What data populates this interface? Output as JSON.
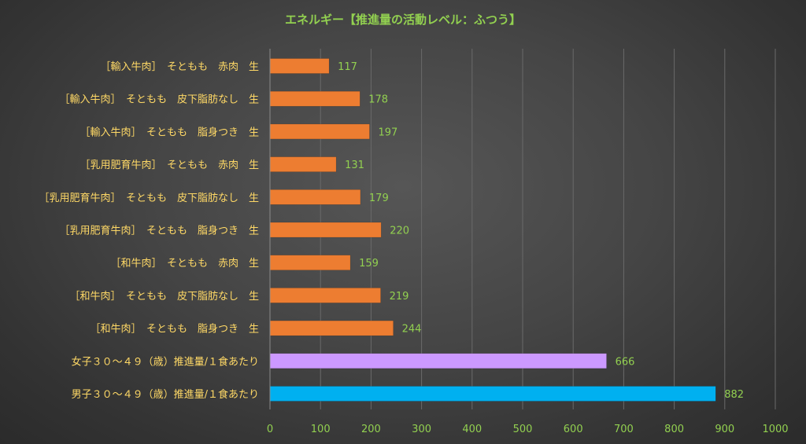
{
  "chart_data": {
    "type": "bar",
    "orientation": "horizontal",
    "title": "エネルギー【推進量の活動レベル：ふつう】",
    "categories": [
      "［輸入牛肉］　そともも　赤肉　生",
      "［輸入牛肉］　そともも　皮下脂肪なし　生",
      "［輸入牛肉］　そともも　脂身つき　生",
      "［乳用肥育牛肉］　そともも　赤肉　生",
      "［乳用肥育牛肉］　そともも　皮下脂肪なし　生",
      "［乳用肥育牛肉］　そともも　脂身つき　生",
      "［和牛肉］　そともも　赤肉　生",
      "［和牛肉］　そともも　皮下脂肪なし　生",
      "［和牛肉］　そともも　脂身つき　生",
      "女子３０～４９（歳）推進量/１食あたり",
      "男子３０～４９（歳）推進量/１食あたり"
    ],
    "values": [
      117,
      178,
      197,
      131,
      179,
      220,
      159,
      219,
      244,
      666,
      882
    ],
    "bar_colors": [
      "#ed7d31",
      "#ed7d31",
      "#ed7d31",
      "#ed7d31",
      "#ed7d31",
      "#ed7d31",
      "#ed7d31",
      "#ed7d31",
      "#ed7d31",
      "#cc99ff",
      "#00b0f0"
    ],
    "xlim": [
      0,
      1000
    ],
    "x_ticks": [
      0,
      100,
      200,
      300,
      400,
      500,
      600,
      700,
      800,
      900,
      1000
    ],
    "xlabel": "",
    "ylabel": "",
    "grid": true,
    "legend": "none",
    "colors": {
      "title": "#92d050",
      "category_label": "#ffd966",
      "value_label": "#92d050",
      "tick_label": "#92d050",
      "grid": "#6a6a6a",
      "axis": "#8a8a8a"
    }
  }
}
